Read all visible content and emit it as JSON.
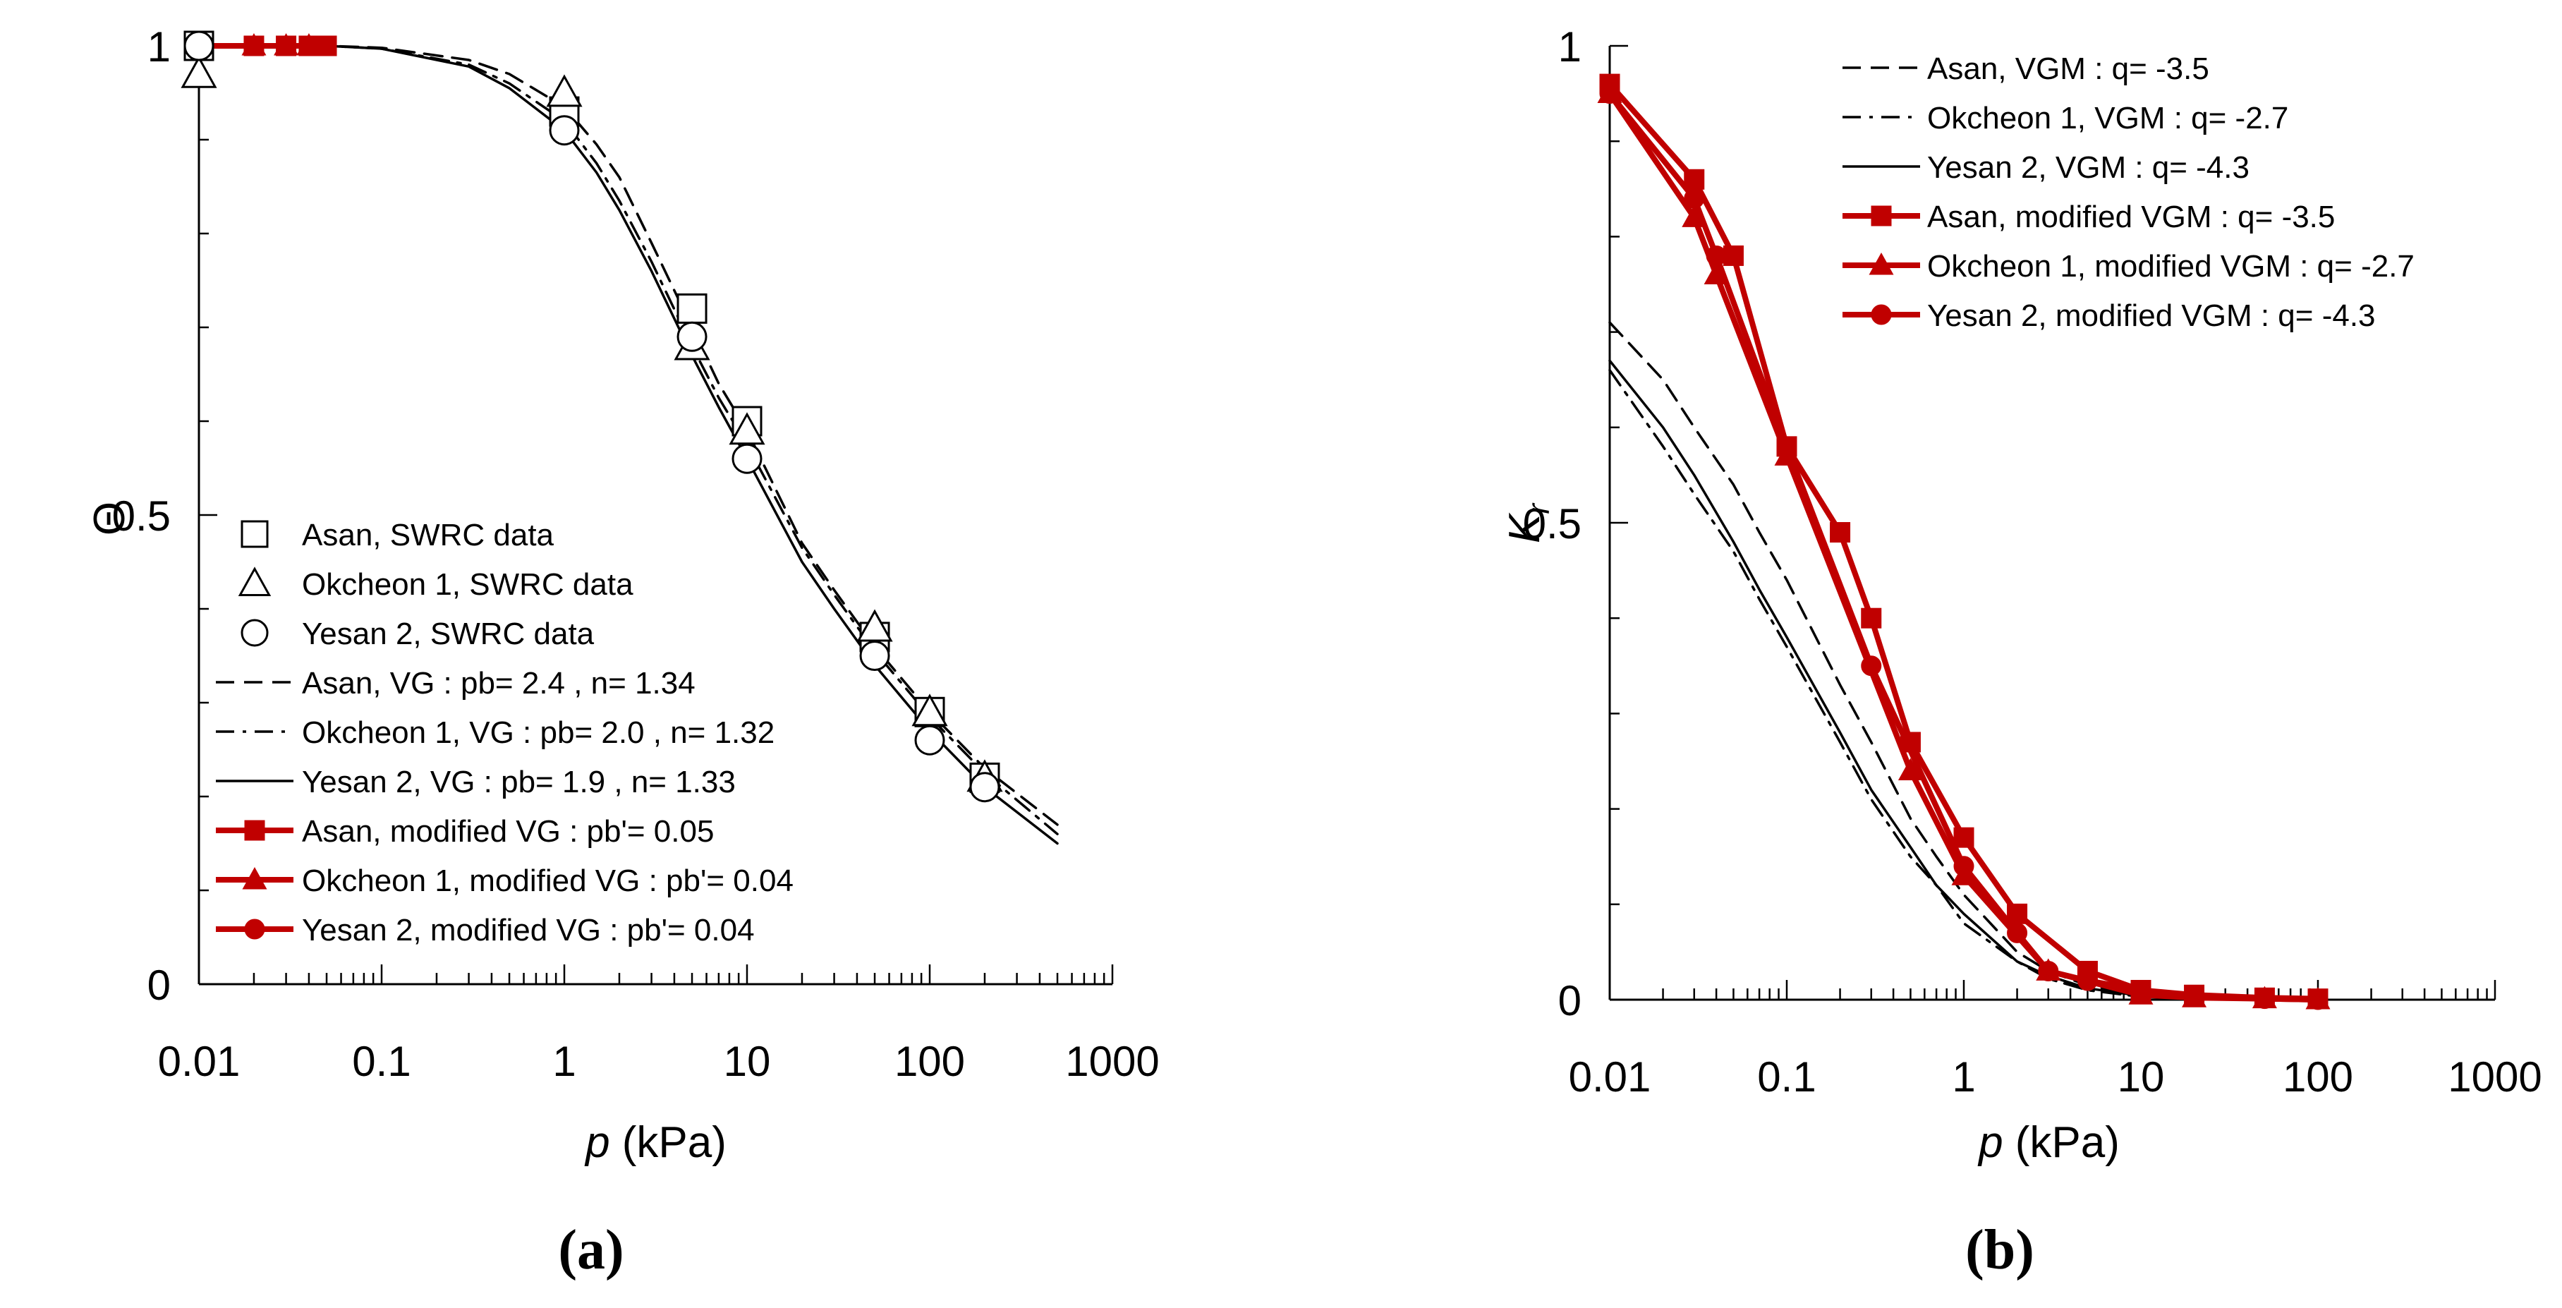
{
  "chart_data": [
    {
      "type": "line",
      "panel_label": "(a)",
      "xscale": "log",
      "xlim": [
        0.01,
        1000
      ],
      "ylim": [
        0,
        1
      ],
      "xlabel_italic": "p",
      "xlabel_rest": " (kPa)",
      "ylabel": "Θ",
      "x_ticks": [
        {
          "value": 0.01,
          "label": "0.01"
        },
        {
          "value": 0.1,
          "label": "0.1"
        },
        {
          "value": 1,
          "label": "1"
        },
        {
          "value": 10,
          "label": "10"
        },
        {
          "value": 100,
          "label": "100"
        },
        {
          "value": 1000,
          "label": "1000"
        }
      ],
      "y_ticks": [
        {
          "value": 0,
          "label": "0"
        },
        {
          "value": 0.5,
          "label": "0.5"
        },
        {
          "value": 1,
          "label": "1"
        }
      ],
      "series": [
        {
          "name": "Asan, VG : pb= 2.4 , n= 1.34",
          "style": "dashed",
          "color": "#000000",
          "x": [
            0.01,
            0.05,
            0.1,
            0.3,
            0.5,
            1,
            1.5,
            2,
            3,
            5,
            7,
            10,
            20,
            30,
            50,
            100,
            200,
            500
          ],
          "y": [
            1.0,
            1.0,
            0.998,
            0.985,
            0.97,
            0.935,
            0.895,
            0.86,
            0.79,
            0.7,
            0.64,
            0.59,
            0.47,
            0.42,
            0.36,
            0.29,
            0.23,
            0.17
          ]
        },
        {
          "name": "Okcheon 1, VG : pb= 2.0 , n= 1.32",
          "style": "dashdot",
          "color": "#000000",
          "x": [
            0.01,
            0.05,
            0.1,
            0.3,
            0.5,
            1,
            1.5,
            2,
            3,
            5,
            7,
            10,
            20,
            30,
            50,
            100,
            200,
            500
          ],
          "y": [
            1.0,
            1.0,
            0.997,
            0.98,
            0.96,
            0.92,
            0.875,
            0.835,
            0.77,
            0.68,
            0.625,
            0.575,
            0.465,
            0.415,
            0.355,
            0.285,
            0.225,
            0.16
          ]
        },
        {
          "name": "Yesan 2, VG : pb= 1.9 , n= 1.33",
          "style": "solid",
          "color": "#000000",
          "x": [
            0.01,
            0.05,
            0.1,
            0.3,
            0.5,
            1,
            1.5,
            2,
            3,
            5,
            7,
            10,
            20,
            30,
            50,
            100,
            200,
            500
          ],
          "y": [
            1.0,
            1.0,
            0.997,
            0.978,
            0.955,
            0.91,
            0.865,
            0.825,
            0.76,
            0.67,
            0.615,
            0.56,
            0.45,
            0.4,
            0.34,
            0.27,
            0.21,
            0.15
          ]
        },
        {
          "name": "Asan, modified VG : pb'= 0.05",
          "style": "solid",
          "color": "#c00000",
          "marker": "square",
          "x": [
            0.01,
            0.02,
            0.03,
            0.04,
            0.05
          ],
          "y": [
            1.0,
            1.0,
            1.0,
            1.0,
            1.0
          ],
          "marker_x": [
            0.02,
            0.03,
            0.04,
            0.05
          ],
          "marker_y": [
            1.0,
            1.0,
            1.0,
            1.0
          ]
        },
        {
          "name": "Okcheon 1, modified VG : pb'= 0.04",
          "style": "solid",
          "color": "#c00000",
          "marker": "triangle",
          "x": [
            0.01,
            0.02,
            0.03,
            0.04
          ],
          "y": [
            1.0,
            1.0,
            1.0,
            1.0
          ],
          "marker_x": [
            0.02,
            0.03,
            0.04
          ],
          "marker_y": [
            1.0,
            1.0,
            1.0
          ]
        },
        {
          "name": "Yesan 2, modified VG : pb'= 0.04",
          "style": "solid",
          "color": "#c00000",
          "marker": "circle",
          "x": [
            0.01,
            0.02,
            0.03,
            0.04
          ],
          "y": [
            1.0,
            1.0,
            1.0,
            1.0
          ],
          "marker_x": [
            0.02,
            0.03,
            0.04
          ],
          "marker_y": [
            1.0,
            1.0,
            1.0
          ]
        },
        {
          "name": "Asan, SWRC data",
          "style": "none",
          "color": "#000000",
          "marker": "open-square",
          "x": [
            0.01,
            1,
            5,
            10,
            50,
            100,
            200
          ],
          "y": [
            1.0,
            0.93,
            0.72,
            0.6,
            0.37,
            0.29,
            0.22
          ]
        },
        {
          "name": "Okcheon 1, SWRC data",
          "style": "none",
          "color": "#000000",
          "marker": "open-triangle",
          "x": [
            0.01,
            1,
            5,
            10,
            50,
            100,
            200
          ],
          "y": [
            0.97,
            0.95,
            0.68,
            0.59,
            0.38,
            0.29,
            0.22
          ]
        },
        {
          "name": "Yesan 2, SWRC data",
          "style": "none",
          "color": "#000000",
          "marker": "open-circle",
          "x": [
            0.01,
            1,
            5,
            10,
            50,
            100,
            200
          ],
          "y": [
            1.0,
            0.91,
            0.69,
            0.56,
            0.35,
            0.26,
            0.21
          ]
        }
      ],
      "legend": [
        "Asan, SWRC data",
        "Okcheon 1, SWRC data",
        "Yesan 2, SWRC data",
        "Asan, VG : pb= 2.4 , n= 1.34",
        "Okcheon 1, VG : pb= 2.0 , n= 1.32",
        "Yesan 2, VG : pb= 1.9 , n= 1.33",
        "Asan, modified VG : pb'= 0.05",
        "Okcheon 1, modified VG : pb'= 0.04",
        "Yesan 2, modified VG : pb'= 0.04"
      ],
      "legend_position": "lower-left"
    },
    {
      "type": "line",
      "panel_label": "(b)",
      "xscale": "log",
      "xlim": [
        0.01,
        1000
      ],
      "ylim": [
        0,
        1
      ],
      "xlabel_italic": "p",
      "xlabel_rest": " (kPa)",
      "ylabel_italic": "K",
      "ylabel_sub": "r",
      "x_ticks": [
        {
          "value": 0.01,
          "label": "0.01"
        },
        {
          "value": 0.1,
          "label": "0.1"
        },
        {
          "value": 1,
          "label": "1"
        },
        {
          "value": 10,
          "label": "10"
        },
        {
          "value": 100,
          "label": "100"
        },
        {
          "value": 1000,
          "label": "1000"
        }
      ],
      "y_ticks": [
        {
          "value": 0,
          "label": "0"
        },
        {
          "value": 0.5,
          "label": "0.5"
        },
        {
          "value": 1,
          "label": "1"
        }
      ],
      "series": [
        {
          "name": "Asan, VGM : q= -3.5",
          "style": "dashed",
          "color": "#000000",
          "x": [
            0.01,
            0.02,
            0.03,
            0.05,
            0.07,
            0.1,
            0.2,
            0.3,
            0.5,
            0.7,
            1,
            2,
            3,
            5,
            10,
            20
          ],
          "y": [
            0.71,
            0.65,
            0.6,
            0.54,
            0.49,
            0.44,
            0.33,
            0.27,
            0.19,
            0.15,
            0.11,
            0.05,
            0.03,
            0.015,
            0.005,
            0.001
          ]
        },
        {
          "name": "Okcheon 1, VGM : q= -2.7",
          "style": "dashdot",
          "color": "#000000",
          "x": [
            0.01,
            0.02,
            0.03,
            0.05,
            0.07,
            0.1,
            0.2,
            0.3,
            0.5,
            0.7,
            1,
            2,
            3,
            5,
            10,
            20
          ],
          "y": [
            0.66,
            0.58,
            0.53,
            0.47,
            0.42,
            0.37,
            0.27,
            0.21,
            0.15,
            0.12,
            0.08,
            0.04,
            0.022,
            0.01,
            0.003,
            0.001
          ]
        },
        {
          "name": "Yesan 2, VGM : q= -4.3",
          "style": "solid",
          "color": "#000000",
          "x": [
            0.01,
            0.02,
            0.03,
            0.05,
            0.07,
            0.1,
            0.2,
            0.3,
            0.5,
            0.7,
            1,
            2,
            3,
            5,
            10,
            20
          ],
          "y": [
            0.67,
            0.6,
            0.55,
            0.48,
            0.43,
            0.38,
            0.28,
            0.22,
            0.16,
            0.12,
            0.09,
            0.04,
            0.025,
            0.012,
            0.004,
            0.001
          ]
        },
        {
          "name": "Asan, modified VGM : q= -3.5",
          "style": "solid",
          "color": "#c00000",
          "marker": "square",
          "x": [
            0.01,
            0.03,
            0.05,
            0.1,
            0.2,
            0.3,
            0.5,
            1,
            2,
            5,
            10,
            20,
            50,
            100
          ],
          "y": [
            0.96,
            0.86,
            0.78,
            0.58,
            0.49,
            0.4,
            0.27,
            0.17,
            0.09,
            0.03,
            0.01,
            0.005,
            0.002,
            0.001
          ]
        },
        {
          "name": "Okcheon 1, modified VGM : q= -2.7",
          "style": "solid",
          "color": "#c00000",
          "marker": "triangle",
          "x": [
            0.01,
            0.03,
            0.04,
            0.1,
            0.5,
            1,
            3,
            10,
            20,
            50,
            100
          ],
          "y": [
            0.95,
            0.82,
            0.76,
            0.57,
            0.24,
            0.13,
            0.03,
            0.005,
            0.002,
            0.001,
            0.0
          ]
        },
        {
          "name": "Yesan 2, modified VGM : q= -4.3",
          "style": "solid",
          "color": "#c00000",
          "marker": "circle",
          "x": [
            0.01,
            0.03,
            0.04,
            0.1,
            0.3,
            1,
            2,
            3,
            5,
            10,
            20,
            50,
            100
          ],
          "y": [
            0.95,
            0.84,
            0.78,
            0.58,
            0.35,
            0.14,
            0.07,
            0.03,
            0.02,
            0.01,
            0.003,
            0.001,
            0.0
          ]
        }
      ],
      "legend": [
        "Asan, VGM : q= -3.5",
        "Okcheon 1, VGM : q= -2.7",
        "Yesan 2, VGM : q= -4.3",
        "Asan, modified VGM : q= -3.5",
        "Okcheon 1, modified VGM : q= -2.7",
        "Yesan 2, modified VGM : q= -4.3"
      ],
      "legend_position": "top-center"
    }
  ]
}
